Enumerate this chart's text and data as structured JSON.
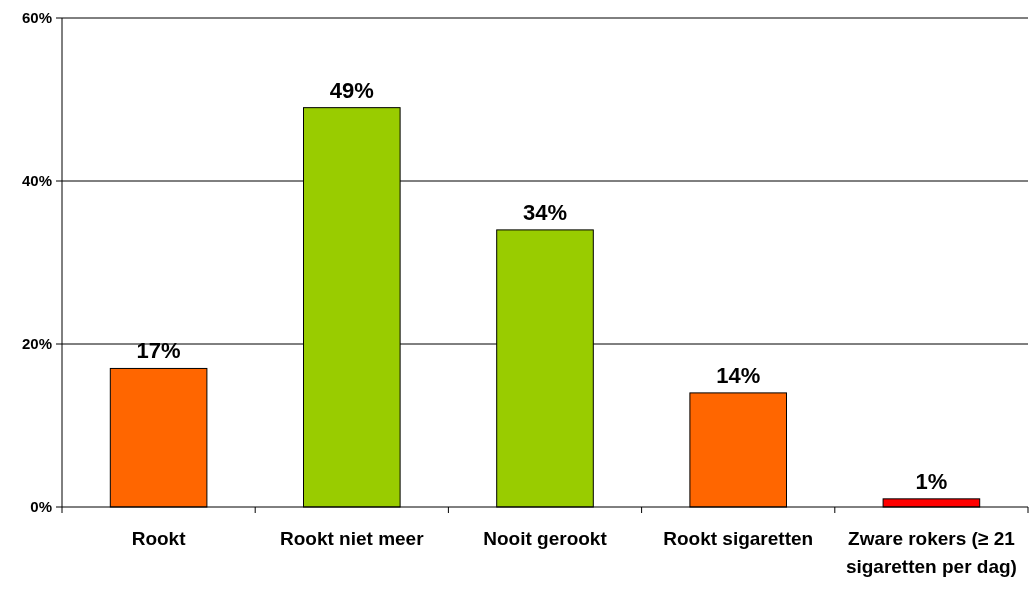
{
  "chart_data": {
    "type": "bar",
    "categories": [
      "Rookt",
      "Rookt niet meer",
      "Nooit gerookt",
      "Rookt sigaretten",
      "Zware rokers (≥ 21 sigaretten per dag)"
    ],
    "values": [
      17,
      49,
      34,
      14,
      1
    ],
    "colors": [
      "#ff6600",
      "#99cc00",
      "#99cc00",
      "#ff6600",
      "#ff0000"
    ],
    "value_labels": [
      "17%",
      "49%",
      "34%",
      "14%",
      "1%"
    ],
    "ylim": [
      0,
      60
    ],
    "yticks": [
      {
        "value": 0,
        "label": "0%"
      },
      {
        "value": 20,
        "label": "20%"
      },
      {
        "value": 40,
        "label": "40%"
      },
      {
        "value": 60,
        "label": "60%"
      }
    ],
    "grid": "y"
  }
}
